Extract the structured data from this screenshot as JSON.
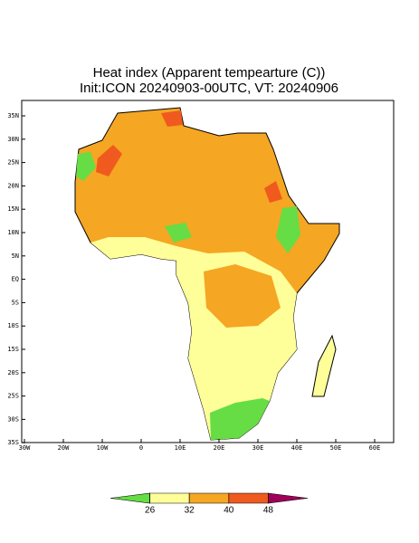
{
  "map": {
    "title": [
      "Heat index (Apparent tempearture (C))",
      "Init:ICON 20240903-00UTC, VT: 20240906"
    ],
    "lat_labels": [
      "35N",
      "30N",
      "25N",
      "20N",
      "15N",
      "10N",
      "5N",
      "EQ",
      "5S",
      "10S",
      "15S",
      "20S",
      "25S",
      "30S",
      "35S"
    ],
    "lon_labels": [
      "30W",
      "20W",
      "10W",
      "0",
      "10E",
      "20E",
      "30E",
      "40E",
      "50E",
      "60E"
    ],
    "colorbar": {
      "colors": [
        "#66dd44",
        "#ffff99",
        "#f5a623",
        "#f05a1e",
        "#a0005a"
      ],
      "ticks": [
        26,
        32,
        40,
        48
      ]
    }
  }
}
